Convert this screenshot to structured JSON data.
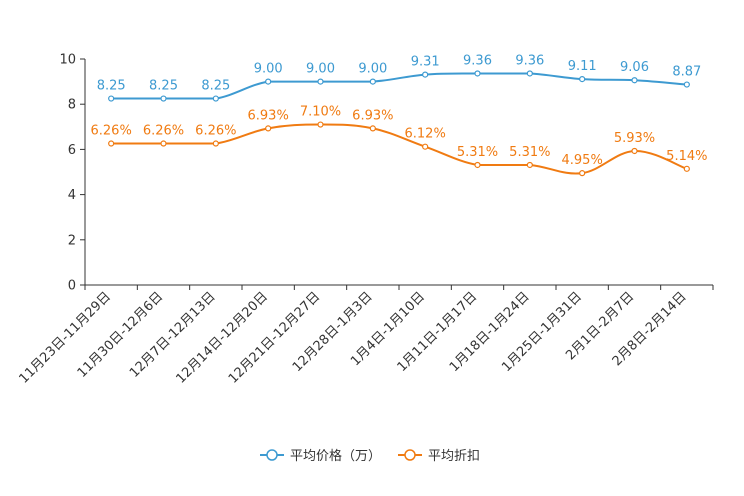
{
  "chart_data": {
    "type": "line",
    "title": "",
    "xlabel": "",
    "ylabel": "",
    "ylim": [
      0,
      10
    ],
    "yticks": [
      0,
      2,
      4,
      6,
      8,
      10
    ],
    "grid": false,
    "legend_position": "bottom-center",
    "categories": [
      "11月23日-11月29日",
      "11月30日-12月6日",
      "12月7日-12月13日",
      "12月14日-12月20日",
      "12月21日-12月27日",
      "12月28日-1月3日",
      "1月4日-1月10日",
      "1月11日-1月17日",
      "1月18日-1月24日",
      "1月25日-1月31日",
      "2月1日-2月7日",
      "2月8日-2月14日"
    ],
    "series": [
      {
        "name": "平均价格（万）",
        "color": "#3d9ad1",
        "values": [
          8.25,
          8.25,
          8.25,
          9.0,
          9.0,
          9.0,
          9.31,
          9.36,
          9.36,
          9.11,
          9.06,
          8.87
        ],
        "labels": [
          "8.25",
          "8.25",
          "8.25",
          "9.00",
          "9.00",
          "9.00",
          "9.31",
          "9.36",
          "9.36",
          "9.11",
          "9.06",
          "8.87"
        ]
      },
      {
        "name": "平均折扣",
        "color": "#f07b12",
        "values": [
          6.26,
          6.26,
          6.26,
          6.93,
          7.1,
          6.93,
          6.12,
          5.31,
          5.31,
          4.95,
          5.93,
          5.14
        ],
        "labels": [
          "6.26%",
          "6.26%",
          "6.26%",
          "6.93%",
          "7.10%",
          "6.93%",
          "6.12%",
          "5.31%",
          "5.31%",
          "4.95%",
          "5.93%",
          "5.14%"
        ]
      }
    ]
  }
}
